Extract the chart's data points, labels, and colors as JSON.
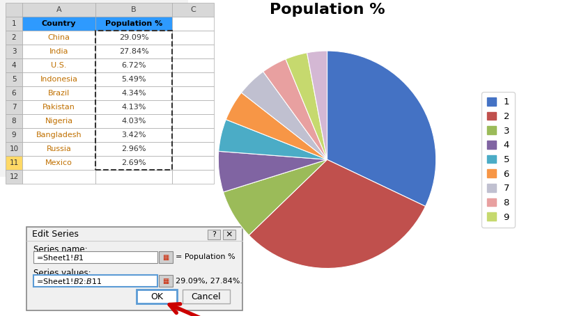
{
  "title": "Population %",
  "countries": [
    "China",
    "India",
    "U.S.",
    "Indonesia",
    "Brazil",
    "Pakistan",
    "Nigeria",
    "Bangladesh",
    "Russia",
    "Mexico"
  ],
  "values": [
    29.09,
    27.84,
    6.72,
    5.49,
    4.34,
    4.13,
    4.03,
    3.42,
    2.96,
    2.69
  ],
  "pie_colors": [
    "#4472C4",
    "#C0504D",
    "#9BBB59",
    "#8064A2",
    "#4BACC6",
    "#F79646",
    "#C0C0D0",
    "#E8A0A0",
    "#C6D96E",
    "#D4B8D4"
  ],
  "legend_labels": [
    "1",
    "2",
    "3",
    "4",
    "5",
    "6",
    "7",
    "8",
    "9"
  ],
  "title_fontsize": 16,
  "bg_color": "#FFFFFF",
  "header_bg": "#2E9AFE",
  "cell_text_color": "#C07000",
  "highlight_color": "#FFD966",
  "dialog_bg": "#F0F0F0",
  "dialog_title": "Edit Series",
  "series_name_label": "Series name:",
  "series_name_value": "=Sheet1!$B$1",
  "series_values_label": "Series values:",
  "series_values_value": "=Sheet1!$B$2:$B$11",
  "popup_result_text": "= Population %",
  "popup_result_text2": "29.09%, 27.84%."
}
